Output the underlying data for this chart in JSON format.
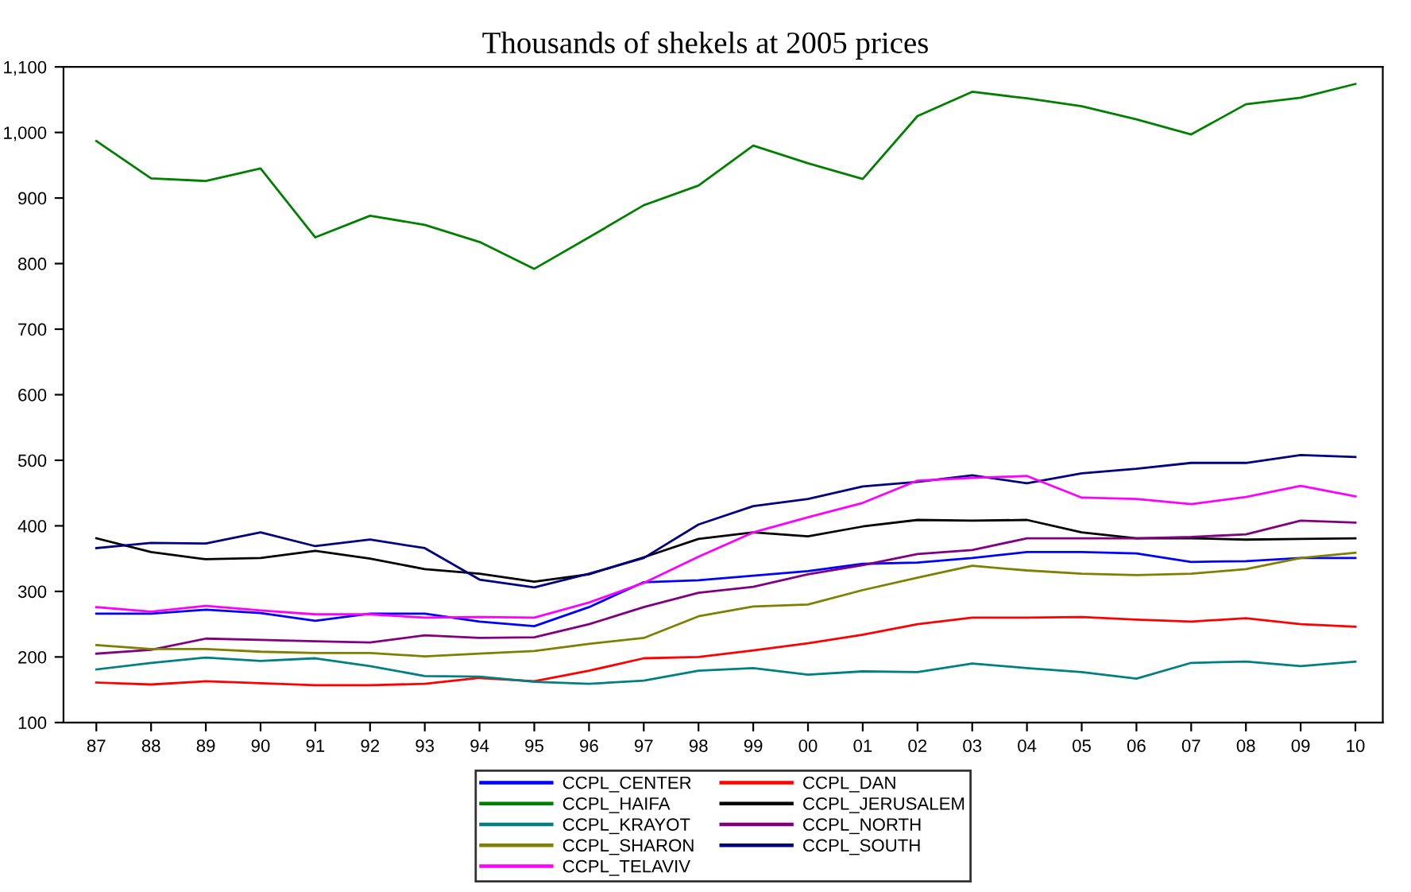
{
  "chart_data": {
    "type": "line",
    "title": "Thousands of shekels at 2005 prices",
    "categories": [
      "87",
      "88",
      "89",
      "90",
      "91",
      "92",
      "93",
      "94",
      "95",
      "96",
      "97",
      "98",
      "99",
      "00",
      "01",
      "02",
      "03",
      "04",
      "05",
      "06",
      "07",
      "08",
      "09",
      "10"
    ],
    "series": [
      {
        "name": "CCPL_CENTER",
        "color": "#0000ff",
        "values": [
          266,
          266,
          272,
          267,
          255,
          266,
          266,
          254,
          247,
          276,
          314,
          317,
          324,
          331,
          342,
          344,
          351,
          360,
          360,
          358,
          345,
          346,
          351,
          351
        ]
      },
      {
        "name": "CCPL_DAN",
        "color": "#ff0000",
        "values": [
          161,
          158,
          163,
          160,
          157,
          157,
          159,
          168,
          163,
          179,
          198,
          200,
          210,
          221,
          234,
          250,
          260,
          260,
          261,
          257,
          254,
          259,
          250,
          246
        ]
      },
      {
        "name": "CCPL_HAIFA",
        "color": "#008000",
        "values": [
          987,
          930,
          926,
          945,
          840,
          873,
          859,
          833,
          792,
          840,
          889,
          919,
          980,
          953,
          929,
          1025,
          1062,
          1052,
          1040,
          1020,
          997,
          1043,
          1053,
          1074
        ]
      },
      {
        "name": "CCPL_JERUSALEM",
        "color": "#000000",
        "values": [
          381,
          360,
          349,
          351,
          362,
          350,
          334,
          327,
          315,
          326,
          352,
          380,
          390,
          384,
          399,
          409,
          408,
          409,
          390,
          381,
          381,
          379,
          380,
          381
        ]
      },
      {
        "name": "CCPL_KRAYOT",
        "color": "#008080",
        "values": [
          181,
          191,
          199,
          194,
          198,
          186,
          171,
          170,
          162,
          159,
          164,
          179,
          183,
          173,
          178,
          177,
          190,
          183,
          177,
          167,
          191,
          193,
          186,
          193
        ]
      },
      {
        "name": "CCPL_NORTH",
        "color": "#800080",
        "values": [
          205,
          211,
          228,
          226,
          224,
          222,
          233,
          229,
          230,
          250,
          276,
          298,
          307,
          326,
          340,
          357,
          363,
          381,
          381,
          381,
          383,
          387,
          408,
          405
        ]
      },
      {
        "name": "CCPL_SHARON",
        "color": "#808000",
        "values": [
          218,
          212,
          212,
          208,
          206,
          206,
          201,
          205,
          209,
          220,
          229,
          262,
          277,
          280,
          302,
          321,
          339,
          332,
          327,
          325,
          327,
          334,
          351,
          359
        ]
      },
      {
        "name": "CCPL_SOUTH",
        "color": "#000080",
        "values": [
          366,
          374,
          373,
          390,
          369,
          379,
          366,
          318,
          306,
          327,
          351,
          402,
          430,
          441,
          460,
          467,
          477,
          465,
          480,
          487,
          496,
          496,
          508,
          505
        ]
      },
      {
        "name": "CCPL_TELAVIV",
        "color": "#ff00ff",
        "values": [
          276,
          269,
          278,
          271,
          265,
          265,
          260,
          261,
          260,
          283,
          313,
          353,
          390,
          413,
          435,
          469,
          473,
          476,
          443,
          441,
          433,
          444,
          461,
          445
        ]
      }
    ],
    "ylim": [
      100,
      1100
    ],
    "yticks": [
      100,
      200,
      300,
      400,
      500,
      600,
      700,
      800,
      900,
      {
        "value": 1000,
        "label": "1,000"
      },
      {
        "value": 1100,
        "label": "1,100"
      }
    ],
    "grid": false,
    "legend": "bottom",
    "marker": "none",
    "line_style": "solid"
  }
}
